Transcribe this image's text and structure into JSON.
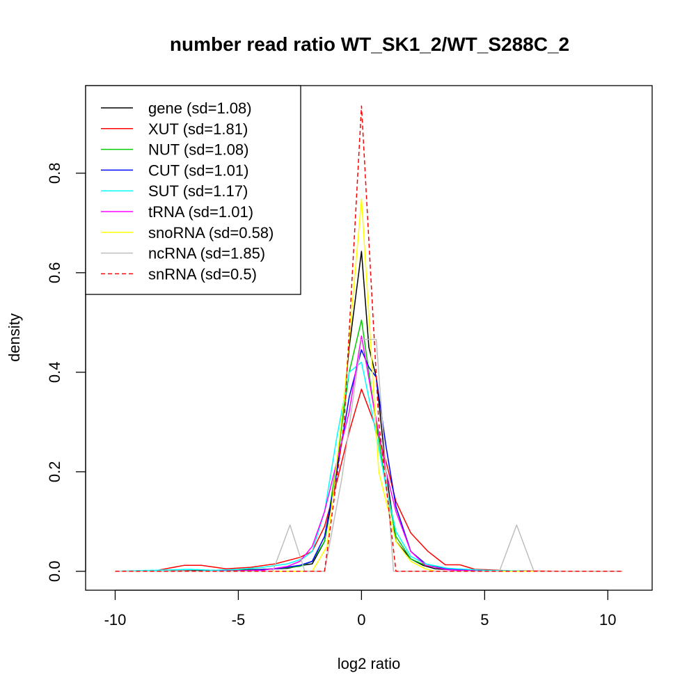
{
  "chart_data": {
    "type": "line",
    "title": "number read ratio WT_SK1_2/WT_S288C_2",
    "xlabel": "log2 ratio",
    "ylabel": "density",
    "xlim": [
      -11.2,
      11.8
    ],
    "ylim": [
      -0.038,
      0.976
    ],
    "x_ticks": [
      -10,
      -5,
      0,
      5,
      10
    ],
    "x_tick_labels": [
      "-10",
      "-5",
      "0",
      "5",
      "10"
    ],
    "y_ticks": [
      0.0,
      0.2,
      0.4,
      0.6,
      0.8
    ],
    "y_tick_labels": [
      "0.0",
      "0.2",
      "0.4",
      "0.6",
      "0.8"
    ],
    "grid": false,
    "legend_position": "top-left",
    "series": [
      {
        "name": "gene (sd=1.08)",
        "color": "#000000",
        "dash": false,
        "points": [
          [
            -10,
            0
          ],
          [
            -8,
            0
          ],
          [
            -6,
            0.002
          ],
          [
            -4,
            0.004
          ],
          [
            -3,
            0.006
          ],
          [
            -2.4,
            0.012
          ],
          [
            -2,
            0.015
          ],
          [
            -1.5,
            0.06
          ],
          [
            -1,
            0.2
          ],
          [
            -0.5,
            0.45
          ],
          [
            0,
            0.643
          ],
          [
            0.3,
            0.45
          ],
          [
            0.6,
            0.39
          ],
          [
            1,
            0.2
          ],
          [
            1.4,
            0.06
          ],
          [
            2,
            0.025
          ],
          [
            2.5,
            0.012
          ],
          [
            3,
            0.005
          ],
          [
            4,
            0.002
          ],
          [
            5,
            0.001
          ],
          [
            7,
            0
          ],
          [
            10.6,
            0
          ]
        ]
      },
      {
        "name": "XUT (sd=1.81)",
        "color": "#ff0000",
        "dash": false,
        "points": [
          [
            -10,
            0
          ],
          [
            -8.5,
            0
          ],
          [
            -7.2,
            0.012
          ],
          [
            -6.5,
            0.012
          ],
          [
            -5.5,
            0.005
          ],
          [
            -4.5,
            0.008
          ],
          [
            -3.5,
            0.015
          ],
          [
            -2.5,
            0.028
          ],
          [
            -2,
            0.04
          ],
          [
            -1.5,
            0.09
          ],
          [
            -1,
            0.18
          ],
          [
            -0.5,
            0.28
          ],
          [
            0,
            0.366
          ],
          [
            0.5,
            0.3
          ],
          [
            1,
            0.22
          ],
          [
            1.4,
            0.14
          ],
          [
            2,
            0.077
          ],
          [
            2.7,
            0.04
          ],
          [
            3.4,
            0.013
          ],
          [
            4,
            0.013
          ],
          [
            4.6,
            0.004
          ],
          [
            5.2,
            0.003
          ],
          [
            6,
            0.001
          ],
          [
            8,
            0
          ],
          [
            10.6,
            0
          ]
        ]
      },
      {
        "name": "NUT (sd=1.08)",
        "color": "#00cc00",
        "dash": false,
        "points": [
          [
            -10,
            0
          ],
          [
            -7,
            0
          ],
          [
            -5,
            0.002
          ],
          [
            -3.5,
            0.005
          ],
          [
            -2.5,
            0.01
          ],
          [
            -2,
            0.02
          ],
          [
            -1.5,
            0.06
          ],
          [
            -1,
            0.22
          ],
          [
            -0.5,
            0.4
          ],
          [
            0,
            0.505
          ],
          [
            0.5,
            0.33
          ],
          [
            1,
            0.17
          ],
          [
            1.4,
            0.07
          ],
          [
            2,
            0.025
          ],
          [
            2.6,
            0.012
          ],
          [
            3.5,
            0.004
          ],
          [
            5,
            0.001
          ],
          [
            7,
            0
          ],
          [
            10.6,
            0
          ]
        ]
      },
      {
        "name": "CUT (sd=1.01)",
        "color": "#0000ff",
        "dash": false,
        "points": [
          [
            -10,
            0
          ],
          [
            -7,
            0
          ],
          [
            -5,
            0.001
          ],
          [
            -3.5,
            0.005
          ],
          [
            -2.5,
            0.012
          ],
          [
            -2,
            0.02
          ],
          [
            -1.5,
            0.07
          ],
          [
            -1,
            0.2
          ],
          [
            -0.5,
            0.35
          ],
          [
            0,
            0.445
          ],
          [
            0.3,
            0.41
          ],
          [
            0.6,
            0.39
          ],
          [
            1,
            0.25
          ],
          [
            1.4,
            0.13
          ],
          [
            2,
            0.04
          ],
          [
            2.6,
            0.015
          ],
          [
            3.5,
            0.005
          ],
          [
            5,
            0.001
          ],
          [
            7,
            0
          ],
          [
            10.6,
            0
          ]
        ]
      },
      {
        "name": "SUT (sd=1.17)",
        "color": "#00ffff",
        "dash": false,
        "points": [
          [
            -10,
            0
          ],
          [
            -7,
            0.004
          ],
          [
            -6,
            0.002
          ],
          [
            -5,
            0.004
          ],
          [
            -4,
            0.008
          ],
          [
            -3,
            0.015
          ],
          [
            -2.4,
            0.025
          ],
          [
            -2,
            0.04
          ],
          [
            -1.5,
            0.12
          ],
          [
            -1,
            0.27
          ],
          [
            -0.5,
            0.4
          ],
          [
            0,
            0.42
          ],
          [
            0.5,
            0.3
          ],
          [
            1,
            0.17
          ],
          [
            1.4,
            0.08
          ],
          [
            2,
            0.03
          ],
          [
            2.6,
            0.015
          ],
          [
            3.5,
            0.006
          ],
          [
            5,
            0.002
          ],
          [
            7,
            0
          ],
          [
            10.6,
            0
          ]
        ]
      },
      {
        "name": "tRNA (sd=1.01)",
        "color": "#ff00ff",
        "dash": false,
        "points": [
          [
            -10,
            0
          ],
          [
            -6,
            0
          ],
          [
            -4,
            0.002
          ],
          [
            -3,
            0.01
          ],
          [
            -2.5,
            0.02
          ],
          [
            -2,
            0.05
          ],
          [
            -1.5,
            0.12
          ],
          [
            -1,
            0.22
          ],
          [
            -0.5,
            0.32
          ],
          [
            0,
            0.473
          ],
          [
            0.5,
            0.33
          ],
          [
            1,
            0.2
          ],
          [
            1.4,
            0.12
          ],
          [
            2,
            0.04
          ],
          [
            2.6,
            0.012
          ],
          [
            3.5,
            0.003
          ],
          [
            5,
            0
          ],
          [
            10.6,
            0
          ]
        ]
      },
      {
        "name": "snoRNA (sd=0.58)",
        "color": "#ffff00",
        "dash": false,
        "points": [
          [
            -10,
            0
          ],
          [
            -2,
            0
          ],
          [
            -1.4,
            0.05
          ],
          [
            -0.7,
            0.35
          ],
          [
            0,
            0.748
          ],
          [
            0.7,
            0.2
          ],
          [
            1.4,
            0.06
          ],
          [
            2,
            0.02
          ],
          [
            2.6,
            0.005
          ],
          [
            3,
            0
          ],
          [
            10.6,
            0
          ]
        ]
      },
      {
        "name": "ncRNA (sd=1.85)",
        "color": "#bebebe",
        "dash": false,
        "points": [
          [
            -10,
            0
          ],
          [
            -3.6,
            0
          ],
          [
            -2.9,
            0.093
          ],
          [
            -2.3,
            0
          ],
          [
            -1.5,
            0
          ],
          [
            -0.8,
            0.186
          ],
          [
            0,
            0.466
          ],
          [
            0.6,
            0.466
          ],
          [
            1.3,
            0
          ],
          [
            5.6,
            0
          ],
          [
            6.3,
            0.093
          ],
          [
            7,
            0
          ],
          [
            10.6,
            0
          ]
        ]
      },
      {
        "name": "snRNA (sd=0.5)",
        "color": "#ff0000",
        "dash": true,
        "points": [
          [
            -10,
            0
          ],
          [
            -1.5,
            0
          ],
          [
            -0.7,
            0.3
          ],
          [
            0,
            0.935
          ],
          [
            0.7,
            0.3
          ],
          [
            1.4,
            0
          ],
          [
            10.6,
            0
          ]
        ]
      }
    ]
  }
}
